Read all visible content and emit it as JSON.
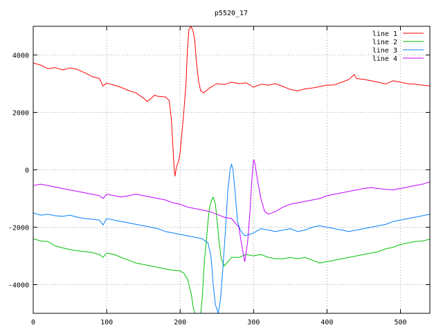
{
  "chart_data": {
    "type": "line",
    "title": "p5520_17",
    "xlabel": "",
    "ylabel": "",
    "xlim": [
      0,
      540
    ],
    "ylim": [
      -5000,
      5000
    ],
    "xticks": [
      0,
      100,
      200,
      300,
      400,
      500
    ],
    "yticks": [
      -4000,
      -2000,
      0,
      2000,
      4000
    ],
    "grid": true,
    "legend_position": "top-right",
    "series": [
      {
        "name": "line 1",
        "color": "#ff0000",
        "points": [
          [
            0,
            3720
          ],
          [
            10,
            3650
          ],
          [
            20,
            3520
          ],
          [
            30,
            3560
          ],
          [
            40,
            3480
          ],
          [
            50,
            3550
          ],
          [
            60,
            3500
          ],
          [
            70,
            3380
          ],
          [
            80,
            3250
          ],
          [
            90,
            3180
          ],
          [
            95,
            2920
          ],
          [
            100,
            3020
          ],
          [
            110,
            2950
          ],
          [
            120,
            2870
          ],
          [
            130,
            2760
          ],
          [
            140,
            2680
          ],
          [
            150,
            2500
          ],
          [
            155,
            2380
          ],
          [
            160,
            2480
          ],
          [
            165,
            2600
          ],
          [
            170,
            2560
          ],
          [
            180,
            2540
          ],
          [
            185,
            2420
          ],
          [
            188,
            1800
          ],
          [
            190,
            900
          ],
          [
            192,
            0
          ],
          [
            193,
            -220
          ],
          [
            195,
            100
          ],
          [
            198,
            300
          ],
          [
            200,
            600
          ],
          [
            205,
            2000
          ],
          [
            208,
            3000
          ],
          [
            210,
            4200
          ],
          [
            212,
            4900
          ],
          [
            215,
            5000
          ],
          [
            218,
            4800
          ],
          [
            220,
            4500
          ],
          [
            222,
            3800
          ],
          [
            225,
            3100
          ],
          [
            228,
            2750
          ],
          [
            232,
            2680
          ],
          [
            240,
            2850
          ],
          [
            250,
            3000
          ],
          [
            260,
            2970
          ],
          [
            270,
            3050
          ],
          [
            280,
            3000
          ],
          [
            290,
            3030
          ],
          [
            300,
            2880
          ],
          [
            310,
            2980
          ],
          [
            320,
            2950
          ],
          [
            330,
            3000
          ],
          [
            340,
            2900
          ],
          [
            350,
            2800
          ],
          [
            360,
            2750
          ],
          [
            370,
            2820
          ],
          [
            380,
            2850
          ],
          [
            390,
            2900
          ],
          [
            400,
            2950
          ],
          [
            410,
            2960
          ],
          [
            420,
            3050
          ],
          [
            430,
            3150
          ],
          [
            437,
            3320
          ],
          [
            440,
            3180
          ],
          [
            450,
            3150
          ],
          [
            460,
            3100
          ],
          [
            470,
            3050
          ],
          [
            480,
            2990
          ],
          [
            490,
            3100
          ],
          [
            500,
            3050
          ],
          [
            510,
            3000
          ],
          [
            520,
            2980
          ],
          [
            530,
            2950
          ],
          [
            540,
            2920
          ]
        ]
      },
      {
        "name": "line 2",
        "color": "#00c000",
        "points": [
          [
            0,
            -2400
          ],
          [
            10,
            -2480
          ],
          [
            20,
            -2500
          ],
          [
            30,
            -2650
          ],
          [
            40,
            -2720
          ],
          [
            50,
            -2780
          ],
          [
            60,
            -2820
          ],
          [
            70,
            -2850
          ],
          [
            80,
            -2880
          ],
          [
            90,
            -2950
          ],
          [
            95,
            -3050
          ],
          [
            100,
            -2900
          ],
          [
            110,
            -2950
          ],
          [
            120,
            -3050
          ],
          [
            130,
            -3150
          ],
          [
            140,
            -3250
          ],
          [
            150,
            -3300
          ],
          [
            160,
            -3350
          ],
          [
            170,
            -3400
          ],
          [
            180,
            -3450
          ],
          [
            190,
            -3500
          ],
          [
            200,
            -3520
          ],
          [
            205,
            -3600
          ],
          [
            210,
            -3800
          ],
          [
            215,
            -4300
          ],
          [
            218,
            -4800
          ],
          [
            220,
            -5000
          ],
          [
            228,
            -5000
          ],
          [
            230,
            -4500
          ],
          [
            233,
            -3200
          ],
          [
            236,
            -2400
          ],
          [
            238,
            -1800
          ],
          [
            240,
            -1300
          ],
          [
            243,
            -1050
          ],
          [
            245,
            -950
          ],
          [
            248,
            -1200
          ],
          [
            250,
            -1700
          ],
          [
            253,
            -2500
          ],
          [
            256,
            -3100
          ],
          [
            260,
            -3350
          ],
          [
            265,
            -3200
          ],
          [
            270,
            -3050
          ],
          [
            280,
            -3050
          ],
          [
            290,
            -2950
          ],
          [
            300,
            -3000
          ],
          [
            310,
            -2950
          ],
          [
            320,
            -3050
          ],
          [
            330,
            -3100
          ],
          [
            340,
            -3100
          ],
          [
            350,
            -3050
          ],
          [
            360,
            -3100
          ],
          [
            370,
            -3050
          ],
          [
            380,
            -3150
          ],
          [
            390,
            -3250
          ],
          [
            400,
            -3200
          ],
          [
            410,
            -3150
          ],
          [
            420,
            -3100
          ],
          [
            430,
            -3050
          ],
          [
            440,
            -3000
          ],
          [
            450,
            -2950
          ],
          [
            460,
            -2900
          ],
          [
            470,
            -2850
          ],
          [
            480,
            -2750
          ],
          [
            490,
            -2700
          ],
          [
            500,
            -2600
          ],
          [
            510,
            -2550
          ],
          [
            520,
            -2500
          ],
          [
            530,
            -2480
          ],
          [
            540,
            -2420
          ]
        ]
      },
      {
        "name": "line 3",
        "color": "#0080ff",
        "points": [
          [
            0,
            -1500
          ],
          [
            10,
            -1580
          ],
          [
            20,
            -1550
          ],
          [
            30,
            -1600
          ],
          [
            40,
            -1620
          ],
          [
            50,
            -1580
          ],
          [
            60,
            -1650
          ],
          [
            70,
            -1700
          ],
          [
            80,
            -1720
          ],
          [
            90,
            -1750
          ],
          [
            95,
            -1920
          ],
          [
            100,
            -1700
          ],
          [
            110,
            -1750
          ],
          [
            120,
            -1800
          ],
          [
            130,
            -1850
          ],
          [
            140,
            -1900
          ],
          [
            150,
            -1950
          ],
          [
            160,
            -2000
          ],
          [
            170,
            -2050
          ],
          [
            180,
            -2150
          ],
          [
            190,
            -2200
          ],
          [
            200,
            -2250
          ],
          [
            210,
            -2300
          ],
          [
            220,
            -2350
          ],
          [
            230,
            -2400
          ],
          [
            238,
            -2550
          ],
          [
            242,
            -3000
          ],
          [
            245,
            -4000
          ],
          [
            248,
            -4700
          ],
          [
            252,
            -5000
          ],
          [
            255,
            -4500
          ],
          [
            258,
            -3500
          ],
          [
            262,
            -2000
          ],
          [
            265,
            -700
          ],
          [
            268,
            0
          ],
          [
            270,
            200
          ],
          [
            272,
            0
          ],
          [
            275,
            -800
          ],
          [
            278,
            -1800
          ],
          [
            282,
            -2100
          ],
          [
            288,
            -2300
          ],
          [
            295,
            -2250
          ],
          [
            300,
            -2200
          ],
          [
            310,
            -2050
          ],
          [
            320,
            -2100
          ],
          [
            330,
            -2150
          ],
          [
            340,
            -2100
          ],
          [
            350,
            -2050
          ],
          [
            360,
            -2150
          ],
          [
            370,
            -2100
          ],
          [
            380,
            -2000
          ],
          [
            390,
            -1950
          ],
          [
            400,
            -2000
          ],
          [
            410,
            -2050
          ],
          [
            420,
            -2100
          ],
          [
            430,
            -2150
          ],
          [
            440,
            -2100
          ],
          [
            450,
            -2050
          ],
          [
            460,
            -2000
          ],
          [
            470,
            -1950
          ],
          [
            480,
            -1900
          ],
          [
            490,
            -1800
          ],
          [
            500,
            -1750
          ],
          [
            510,
            -1700
          ],
          [
            520,
            -1650
          ],
          [
            530,
            -1600
          ],
          [
            540,
            -1550
          ]
        ]
      },
      {
        "name": "line 4",
        "color": "#c000ff",
        "points": [
          [
            0,
            -550
          ],
          [
            10,
            -500
          ],
          [
            20,
            -550
          ],
          [
            30,
            -600
          ],
          [
            40,
            -650
          ],
          [
            50,
            -700
          ],
          [
            60,
            -750
          ],
          [
            70,
            -800
          ],
          [
            80,
            -850
          ],
          [
            90,
            -900
          ],
          [
            95,
            -1000
          ],
          [
            100,
            -850
          ],
          [
            110,
            -900
          ],
          [
            120,
            -950
          ],
          [
            130,
            -900
          ],
          [
            140,
            -850
          ],
          [
            150,
            -900
          ],
          [
            160,
            -950
          ],
          [
            170,
            -1000
          ],
          [
            180,
            -1050
          ],
          [
            190,
            -1150
          ],
          [
            200,
            -1200
          ],
          [
            210,
            -1300
          ],
          [
            220,
            -1350
          ],
          [
            230,
            -1400
          ],
          [
            240,
            -1450
          ],
          [
            250,
            -1550
          ],
          [
            260,
            -1650
          ],
          [
            270,
            -1700
          ],
          [
            280,
            -2000
          ],
          [
            285,
            -2800
          ],
          [
            288,
            -3200
          ],
          [
            292,
            -2500
          ],
          [
            295,
            -1500
          ],
          [
            298,
            -200
          ],
          [
            300,
            350
          ],
          [
            302,
            200
          ],
          [
            305,
            -300
          ],
          [
            310,
            -1000
          ],
          [
            315,
            -1450
          ],
          [
            320,
            -1550
          ],
          [
            330,
            -1450
          ],
          [
            340,
            -1300
          ],
          [
            350,
            -1200
          ],
          [
            360,
            -1150
          ],
          [
            370,
            -1100
          ],
          [
            380,
            -1050
          ],
          [
            390,
            -1000
          ],
          [
            400,
            -900
          ],
          [
            410,
            -850
          ],
          [
            420,
            -800
          ],
          [
            430,
            -750
          ],
          [
            440,
            -700
          ],
          [
            450,
            -650
          ],
          [
            460,
            -620
          ],
          [
            470,
            -650
          ],
          [
            480,
            -680
          ],
          [
            490,
            -700
          ],
          [
            500,
            -650
          ],
          [
            510,
            -600
          ],
          [
            520,
            -550
          ],
          [
            530,
            -500
          ],
          [
            540,
            -420
          ]
        ]
      }
    ]
  }
}
